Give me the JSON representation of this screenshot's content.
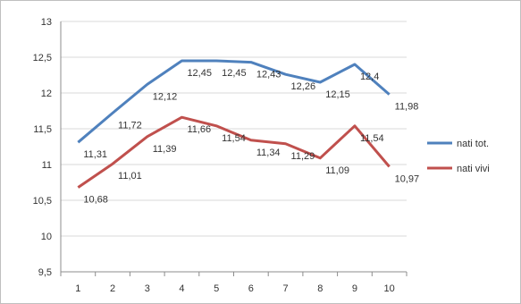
{
  "chart_data": {
    "type": "line",
    "title": "",
    "xlabel": "",
    "ylabel": "",
    "categories": [
      "1",
      "2",
      "3",
      "4",
      "5",
      "6",
      "7",
      "8",
      "9",
      "10"
    ],
    "ylim": [
      9.5,
      13
    ],
    "yticks": [
      "9,5",
      "10",
      "10,5",
      "11",
      "11,5",
      "12",
      "12,5",
      "13"
    ],
    "ytick_values": [
      9.5,
      10,
      10.5,
      11,
      11.5,
      12,
      12.5,
      13
    ],
    "grid": true,
    "legend_position": "right",
    "series": [
      {
        "name": "nati tot.",
        "color": "#4f81bd",
        "values": [
          11.31,
          11.72,
          12.12,
          12.45,
          12.45,
          12.43,
          12.26,
          12.15,
          12.4,
          11.98
        ],
        "labels": [
          "11,31",
          "11,72",
          "12,12",
          "12,45",
          "12,45",
          "12,43",
          "12,26",
          "12,15",
          "12,4",
          "11,98"
        ]
      },
      {
        "name": "nati vivi",
        "color": "#c0504d",
        "values": [
          10.68,
          11.01,
          11.39,
          11.66,
          11.54,
          11.34,
          11.29,
          11.09,
          11.54,
          10.97
        ],
        "labels": [
          "10,68",
          "11,01",
          "11,39",
          "11,66",
          "11,54",
          "11,34",
          "11,29",
          "11,09",
          "11,54",
          "10,97"
        ]
      }
    ]
  }
}
